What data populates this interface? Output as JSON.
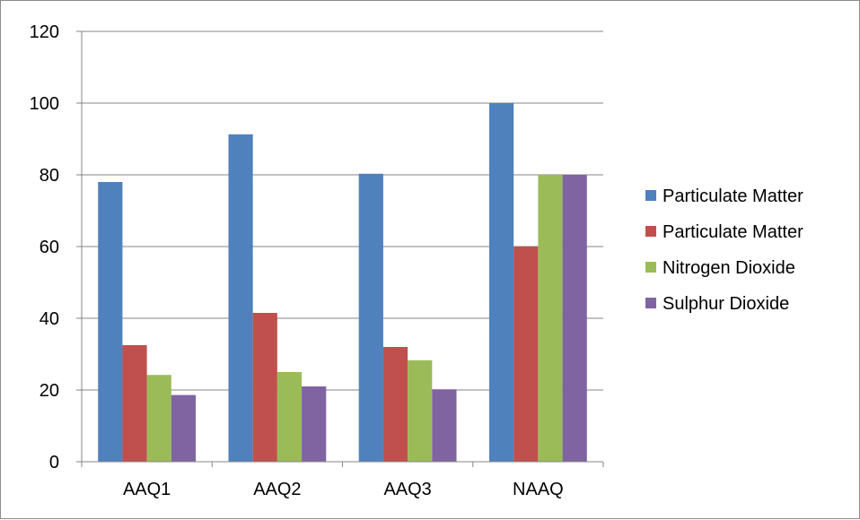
{
  "chart_data": {
    "type": "bar",
    "title": "",
    "xlabel": "",
    "ylabel": "",
    "categories": [
      "AAQ1",
      "AAQ2",
      "AAQ3",
      "NAAQ"
    ],
    "ylim": [
      0,
      120
    ],
    "yticks": [
      0,
      20,
      40,
      60,
      80,
      100,
      120
    ],
    "grid": true,
    "legend_position": "right",
    "series": [
      {
        "name": "Particulate Matter",
        "color": "#4F81BD",
        "values": [
          78,
          91.3,
          80.3,
          100
        ]
      },
      {
        "name": "Particulate Matter",
        "color": "#C0504D",
        "values": [
          32.5,
          41.5,
          32,
          60
        ]
      },
      {
        "name": "Nitrogen Dioxide",
        "color": "#9BBB59",
        "values": [
          24.2,
          25,
          28.3,
          80
        ]
      },
      {
        "name": "Sulphur Dioxide",
        "color": "#8064A2",
        "values": [
          18.6,
          21,
          20.2,
          80
        ]
      }
    ]
  }
}
